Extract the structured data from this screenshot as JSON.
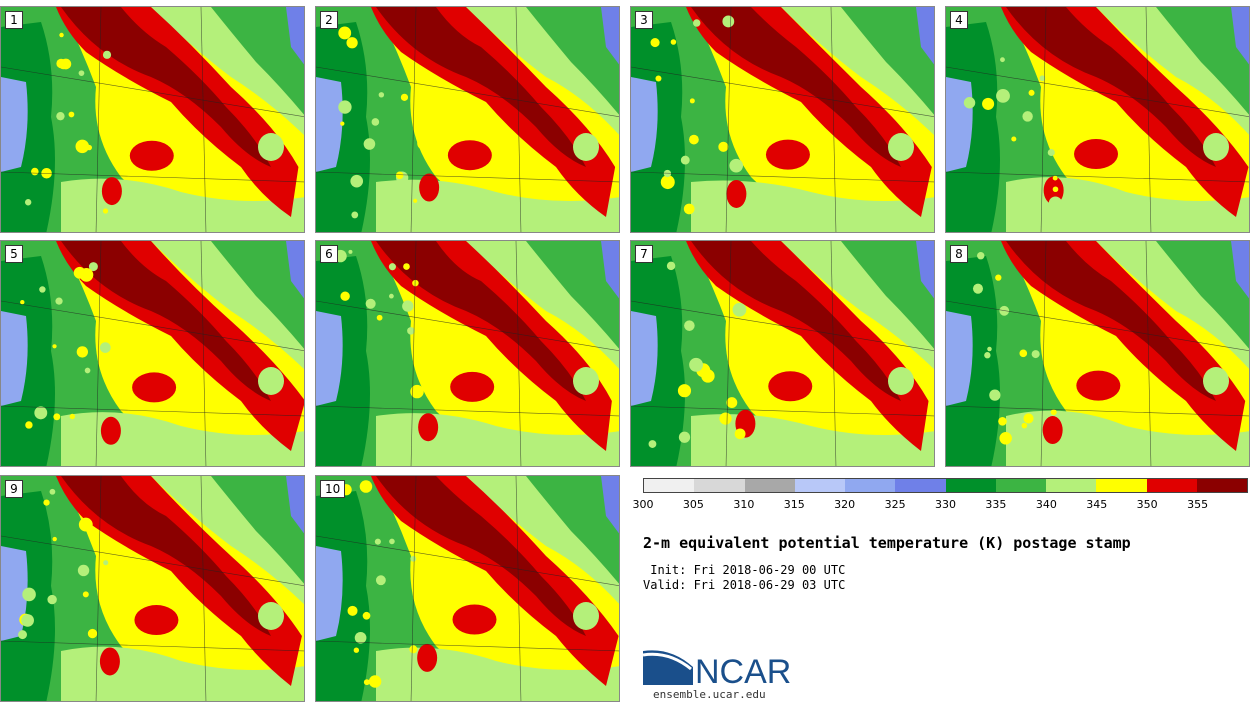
{
  "members": [
    "1",
    "2",
    "3",
    "4",
    "5",
    "6",
    "7",
    "8",
    "9",
    "10"
  ],
  "colorbar": {
    "ticks": [
      "300",
      "305",
      "310",
      "315",
      "320",
      "325",
      "330",
      "335",
      "340",
      "345",
      "350",
      "355"
    ],
    "colors": [
      "#f0f0f0",
      "#d8d8d8",
      "#a8a8a8",
      "#b8c8f8",
      "#90a8f0",
      "#6f80e8",
      "#00902a",
      "#3cb443",
      "#b4f07a",
      "#ffff00",
      "#e00000",
      "#8b0000"
    ]
  },
  "title": "2-m equivalent potential temperature (K) postage stamp",
  "init_line": " Init: Fri 2018-06-29 00 UTC",
  "valid_line": "Valid: Fri 2018-06-29 03 UTC",
  "logo": {
    "name": "NCAR",
    "url": "ensemble.ucar.edu",
    "brand_color": "#1a4f8b"
  }
}
